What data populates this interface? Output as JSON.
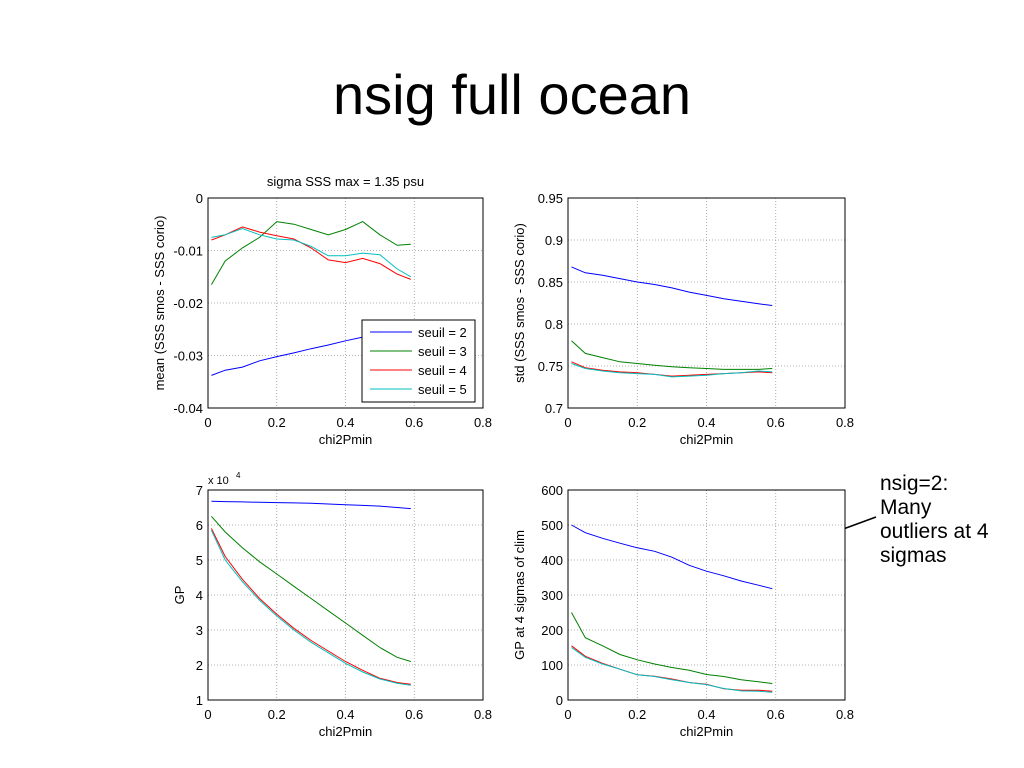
{
  "slide": {
    "title": "nsig full ocean",
    "annotation_lines": [
      "nsig=2:",
      "Many",
      "outliers at 4",
      "sigmas"
    ]
  },
  "colors": {
    "seuil2": "#0000ff",
    "seuil3": "#008000",
    "seuil4": "#ff0000",
    "seuil5": "#00bfbf"
  },
  "chart_data": [
    {
      "type": "line",
      "title": "sigma SSS max = 1.35 psu",
      "xlabel": "chi2Pmin",
      "ylabel": "mean (SSS smos - SSS corio)",
      "xlim": [
        0,
        0.8
      ],
      "ylim": [
        -0.04,
        0
      ],
      "xticks": [
        "0",
        "0.2",
        "0.4",
        "0.6",
        "0.8"
      ],
      "yticks": [
        "-0.04",
        "-0.03",
        "-0.02",
        "-0.01",
        "0"
      ],
      "grid": true,
      "legend": "bottom-right",
      "x": [
        0.01,
        0.05,
        0.1,
        0.15,
        0.2,
        0.25,
        0.3,
        0.35,
        0.4,
        0.45,
        0.5,
        0.55,
        0.59
      ],
      "series": [
        {
          "name": "seuil = 2",
          "values": [
            -0.0338,
            -0.0328,
            -0.0322,
            -0.031,
            -0.0302,
            -0.0295,
            -0.0287,
            -0.028,
            -0.0272,
            -0.0265,
            -0.0258,
            -0.025,
            -0.0245
          ]
        },
        {
          "name": "seuil = 3",
          "values": [
            -0.0165,
            -0.012,
            -0.0095,
            -0.0075,
            -0.0045,
            -0.005,
            -0.006,
            -0.007,
            -0.006,
            -0.0045,
            -0.007,
            -0.009,
            -0.0088
          ]
        },
        {
          "name": "seuil = 4",
          "values": [
            -0.008,
            -0.007,
            -0.0055,
            -0.0065,
            -0.0072,
            -0.0078,
            -0.0095,
            -0.0118,
            -0.0123,
            -0.0115,
            -0.0125,
            -0.0145,
            -0.0155
          ]
        },
        {
          "name": "seuil = 5",
          "values": [
            -0.0075,
            -0.007,
            -0.0058,
            -0.007,
            -0.0078,
            -0.008,
            -0.0092,
            -0.011,
            -0.011,
            -0.0105,
            -0.0108,
            -0.0135,
            -0.015
          ]
        }
      ]
    },
    {
      "type": "line",
      "title": "",
      "xlabel": "chi2Pmin",
      "ylabel": "std (SSS smos - SSS corio)",
      "xlim": [
        0,
        0.8
      ],
      "ylim": [
        0.7,
        0.95
      ],
      "xticks": [
        "0",
        "0.2",
        "0.4",
        "0.6",
        "0.8"
      ],
      "yticks": [
        "0.7",
        "0.75",
        "0.8",
        "0.85",
        "0.9",
        "0.95"
      ],
      "grid": true,
      "x": [
        0.01,
        0.05,
        0.1,
        0.15,
        0.2,
        0.25,
        0.3,
        0.35,
        0.4,
        0.45,
        0.5,
        0.55,
        0.59
      ],
      "series": [
        {
          "name": "seuil = 2",
          "values": [
            0.868,
            0.861,
            0.858,
            0.854,
            0.85,
            0.847,
            0.843,
            0.838,
            0.834,
            0.83,
            0.827,
            0.824,
            0.822
          ]
        },
        {
          "name": "seuil = 3",
          "values": [
            0.78,
            0.765,
            0.76,
            0.755,
            0.753,
            0.751,
            0.749,
            0.748,
            0.747,
            0.746,
            0.746,
            0.746,
            0.747
          ]
        },
        {
          "name": "seuil = 4",
          "values": [
            0.755,
            0.748,
            0.745,
            0.743,
            0.742,
            0.74,
            0.738,
            0.739,
            0.74,
            0.741,
            0.742,
            0.743,
            0.742
          ]
        },
        {
          "name": "seuil = 5",
          "values": [
            0.753,
            0.747,
            0.744,
            0.742,
            0.741,
            0.74,
            0.737,
            0.738,
            0.739,
            0.741,
            0.742,
            0.744,
            0.743
          ]
        }
      ]
    },
    {
      "type": "line",
      "title": "",
      "xlabel": "chi2Pmin",
      "ylabel": "GP",
      "yscale_label": "x 10",
      "yscale_exp": "4",
      "xlim": [
        0,
        0.8
      ],
      "ylim": [
        1,
        7
      ],
      "xticks": [
        "0",
        "0.2",
        "0.4",
        "0.6",
        "0.8"
      ],
      "yticks": [
        "1",
        "2",
        "3",
        "4",
        "5",
        "6",
        "7"
      ],
      "grid": true,
      "x": [
        0.01,
        0.05,
        0.1,
        0.15,
        0.2,
        0.25,
        0.3,
        0.35,
        0.4,
        0.45,
        0.5,
        0.55,
        0.59
      ],
      "series": [
        {
          "name": "seuil = 2",
          "values": [
            6.68,
            6.67,
            6.66,
            6.65,
            6.64,
            6.63,
            6.62,
            6.6,
            6.58,
            6.56,
            6.54,
            6.5,
            6.47
          ]
        },
        {
          "name": "seuil = 3",
          "values": [
            6.25,
            5.8,
            5.35,
            4.95,
            4.6,
            4.25,
            3.9,
            3.55,
            3.2,
            2.85,
            2.5,
            2.22,
            2.1
          ]
        },
        {
          "name": "seuil = 4",
          "values": [
            5.9,
            5.1,
            4.45,
            3.9,
            3.45,
            3.05,
            2.7,
            2.4,
            2.1,
            1.85,
            1.62,
            1.5,
            1.45
          ]
        },
        {
          "name": "seuil = 5",
          "values": [
            5.85,
            5.0,
            4.38,
            3.85,
            3.4,
            3.0,
            2.65,
            2.35,
            2.05,
            1.8,
            1.6,
            1.48,
            1.42
          ]
        }
      ]
    },
    {
      "type": "line",
      "title": "",
      "xlabel": "chi2Pmin",
      "ylabel": "GP at 4 sigmas of clim",
      "xlim": [
        0,
        0.8
      ],
      "ylim": [
        0,
        600
      ],
      "xticks": [
        "0",
        "0.2",
        "0.4",
        "0.6",
        "0.8"
      ],
      "yticks": [
        "0",
        "100",
        "200",
        "300",
        "400",
        "500",
        "600"
      ],
      "grid": true,
      "x": [
        0.01,
        0.05,
        0.1,
        0.15,
        0.2,
        0.25,
        0.3,
        0.35,
        0.4,
        0.45,
        0.5,
        0.55,
        0.59
      ],
      "series": [
        {
          "name": "seuil = 2",
          "values": [
            500,
            478,
            462,
            448,
            435,
            425,
            408,
            385,
            368,
            355,
            340,
            328,
            318
          ]
        },
        {
          "name": "seuil = 3",
          "values": [
            250,
            178,
            155,
            130,
            115,
            103,
            93,
            85,
            73,
            67,
            58,
            52,
            47
          ]
        },
        {
          "name": "seuil = 4",
          "values": [
            155,
            125,
            105,
            88,
            72,
            68,
            60,
            50,
            45,
            32,
            28,
            28,
            25
          ]
        },
        {
          "name": "seuil = 5",
          "values": [
            150,
            122,
            103,
            88,
            72,
            67,
            58,
            50,
            44,
            33,
            26,
            25,
            22
          ]
        }
      ]
    }
  ]
}
